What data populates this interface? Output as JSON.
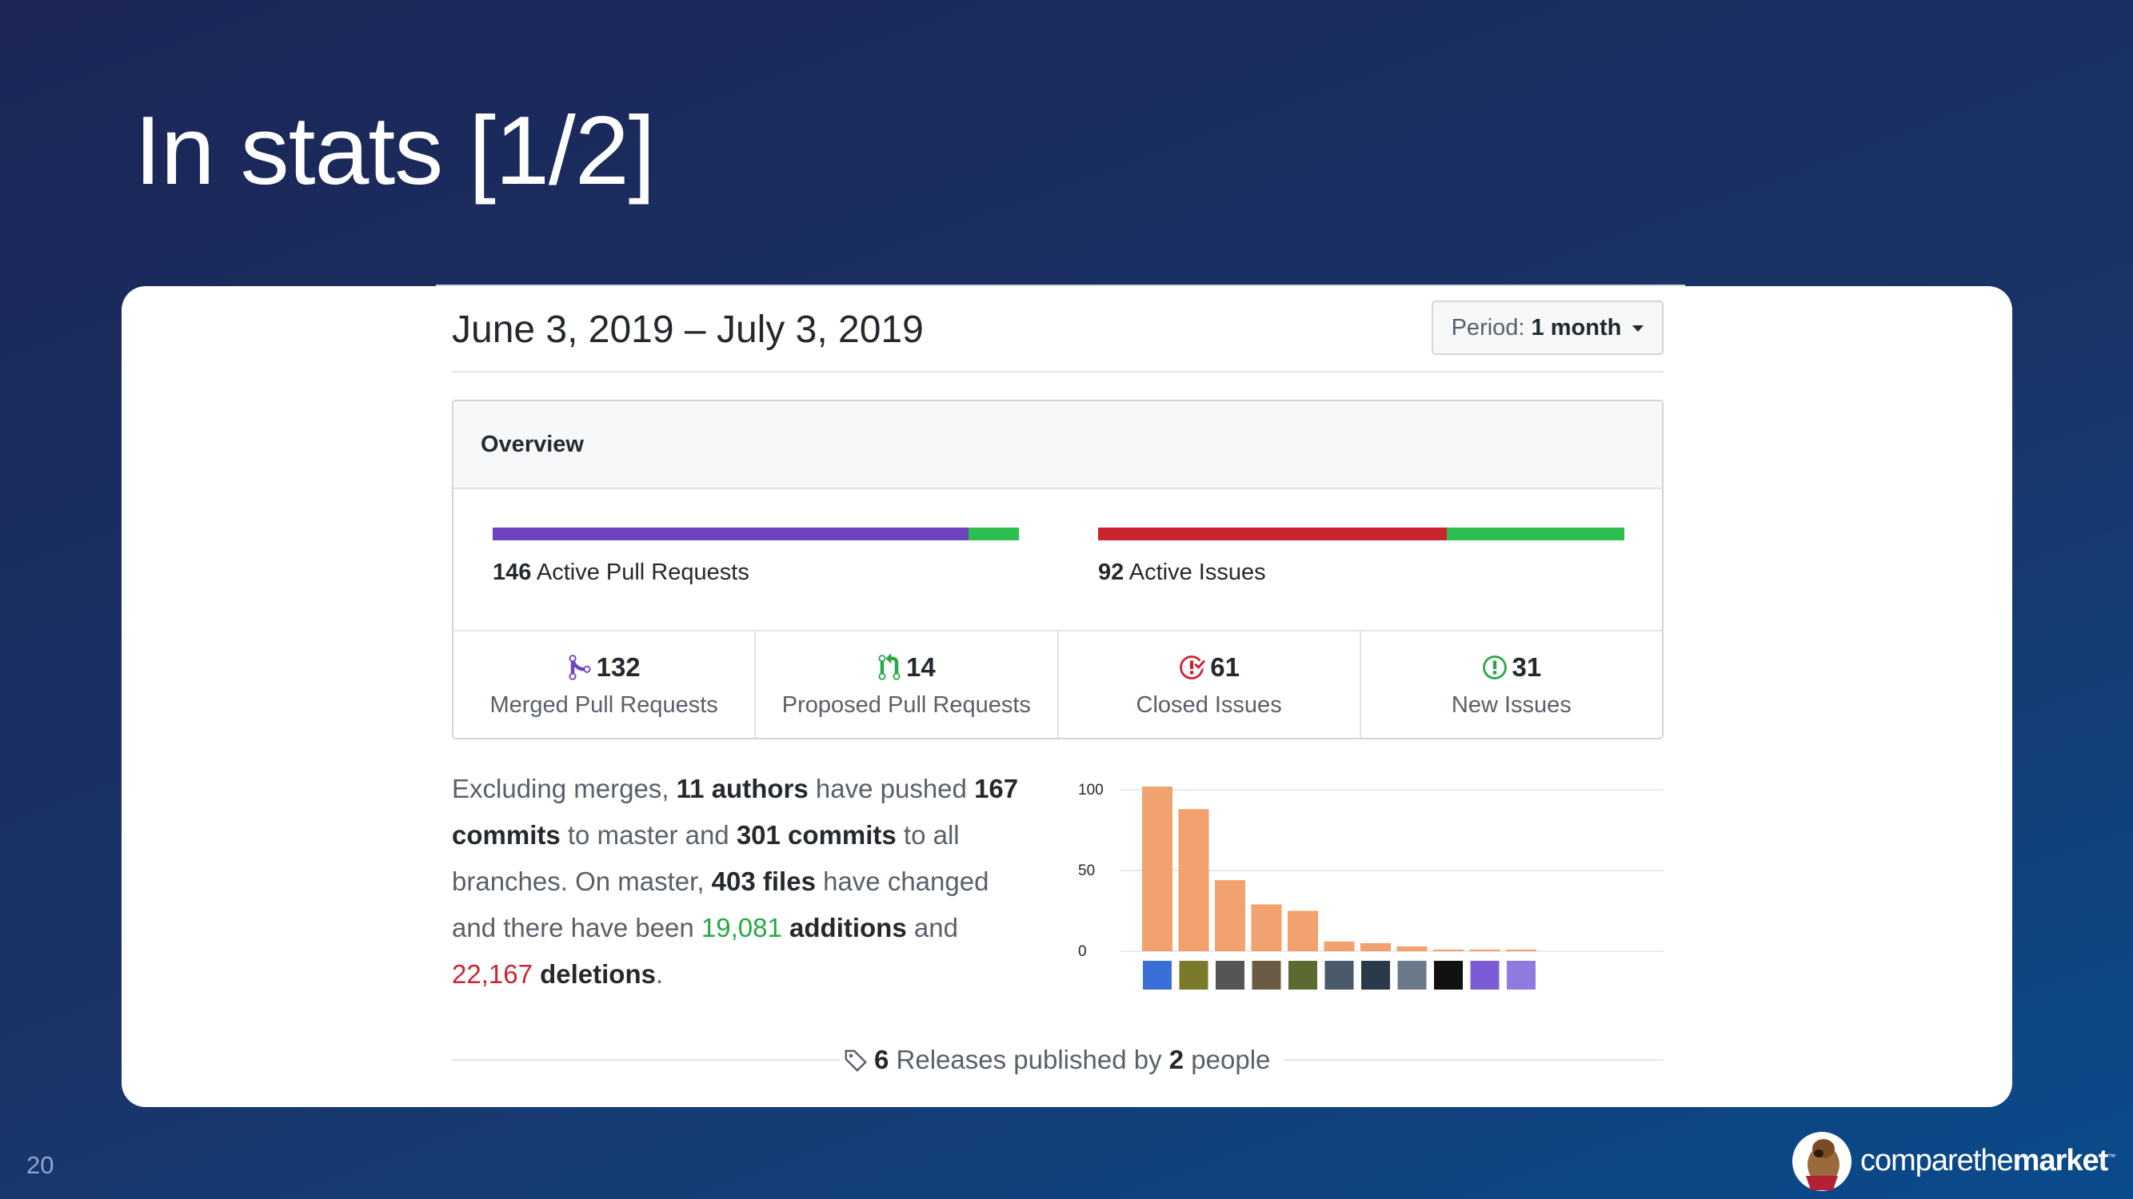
{
  "slide": {
    "title": "In stats [1/2]",
    "page_number": "20"
  },
  "header": {
    "date_range": "June 3, 2019 – July 3, 2019",
    "period_label": "Period:",
    "period_value": "1 month"
  },
  "overview": {
    "title": "Overview",
    "pull_requests": {
      "count": "146",
      "label": "Active Pull Requests",
      "merged_fraction": 0.904,
      "colors": {
        "merged": "#6f42c1",
        "open": "#2cbe4e"
      }
    },
    "issues": {
      "count": "92",
      "label": "Active Issues",
      "closed_fraction": 0.663,
      "colors": {
        "closed": "#cb2431",
        "open": "#2cbe4e"
      }
    },
    "stats": [
      {
        "icon": "merged-pr-icon",
        "value": "132",
        "label": "Merged Pull Requests",
        "color": "#6f42c1"
      },
      {
        "icon": "open-pr-icon",
        "value": "14",
        "label": "Proposed Pull Requests",
        "color": "#28a745"
      },
      {
        "icon": "closed-issue-icon",
        "value": "61",
        "label": "Closed Issues",
        "color": "#cb2431"
      },
      {
        "icon": "new-issue-icon",
        "value": "31",
        "label": "New Issues",
        "color": "#28a745"
      }
    ]
  },
  "summary": {
    "t1": "Excluding merges, ",
    "authors": "11 authors",
    "t2": " have pushed ",
    "commits_master": "167 commits",
    "t3": " to master and ",
    "commits_all": "301 commits",
    "t4": " to all branches. On master, ",
    "files": "403 files",
    "t5": " have changed and there have been ",
    "additions_num": "19,081",
    "additions_word": " additions",
    "t6": " and ",
    "deletions_num": "22,167",
    "deletions_word": " deletions",
    "t7": "."
  },
  "chart_data": {
    "type": "bar",
    "title": "",
    "xlabel": "",
    "ylabel": "",
    "ylim": [
      0,
      100
    ],
    "yticks": [
      "100",
      "50",
      "0"
    ],
    "bar_color": "#f1a26e",
    "categories": [
      "author 1",
      "author 2",
      "author 3",
      "author 4",
      "author 5",
      "author 6",
      "author 7",
      "author 8",
      "author 9",
      "author 10",
      "author 11"
    ],
    "values": [
      102,
      88,
      44,
      29,
      25,
      6,
      5,
      3,
      1,
      1,
      1
    ]
  },
  "releases": {
    "count": "6",
    "t1": " Releases published by ",
    "people": "2",
    "t2": " people"
  },
  "brand": {
    "name_regular": "comparethe",
    "name_bold": "market",
    "tm": "™"
  }
}
